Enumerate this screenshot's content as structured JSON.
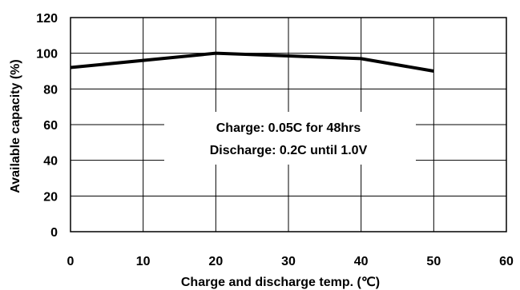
{
  "chart_data": {
    "type": "line",
    "title": "",
    "xlabel": "Charge and discharge temp. (℃)",
    "ylabel": "Available capacity (%)",
    "xlim": [
      0,
      60
    ],
    "ylim": [
      0,
      120
    ],
    "xticks": [
      0,
      10,
      20,
      30,
      40,
      50,
      60
    ],
    "yticks": [
      0,
      20,
      40,
      60,
      80,
      100,
      120
    ],
    "grid": true,
    "legend": "none",
    "series": [
      {
        "x": [
          0,
          20,
          30,
          40,
          50
        ],
        "y": [
          92,
          100,
          98.5,
          97,
          90
        ]
      }
    ],
    "annotations": [
      "Charge: 0.05C for 48hrs",
      "Discharge: 0.2C until 1.0V"
    ],
    "colors": {
      "line": "#000000",
      "grid": "#000000"
    }
  }
}
